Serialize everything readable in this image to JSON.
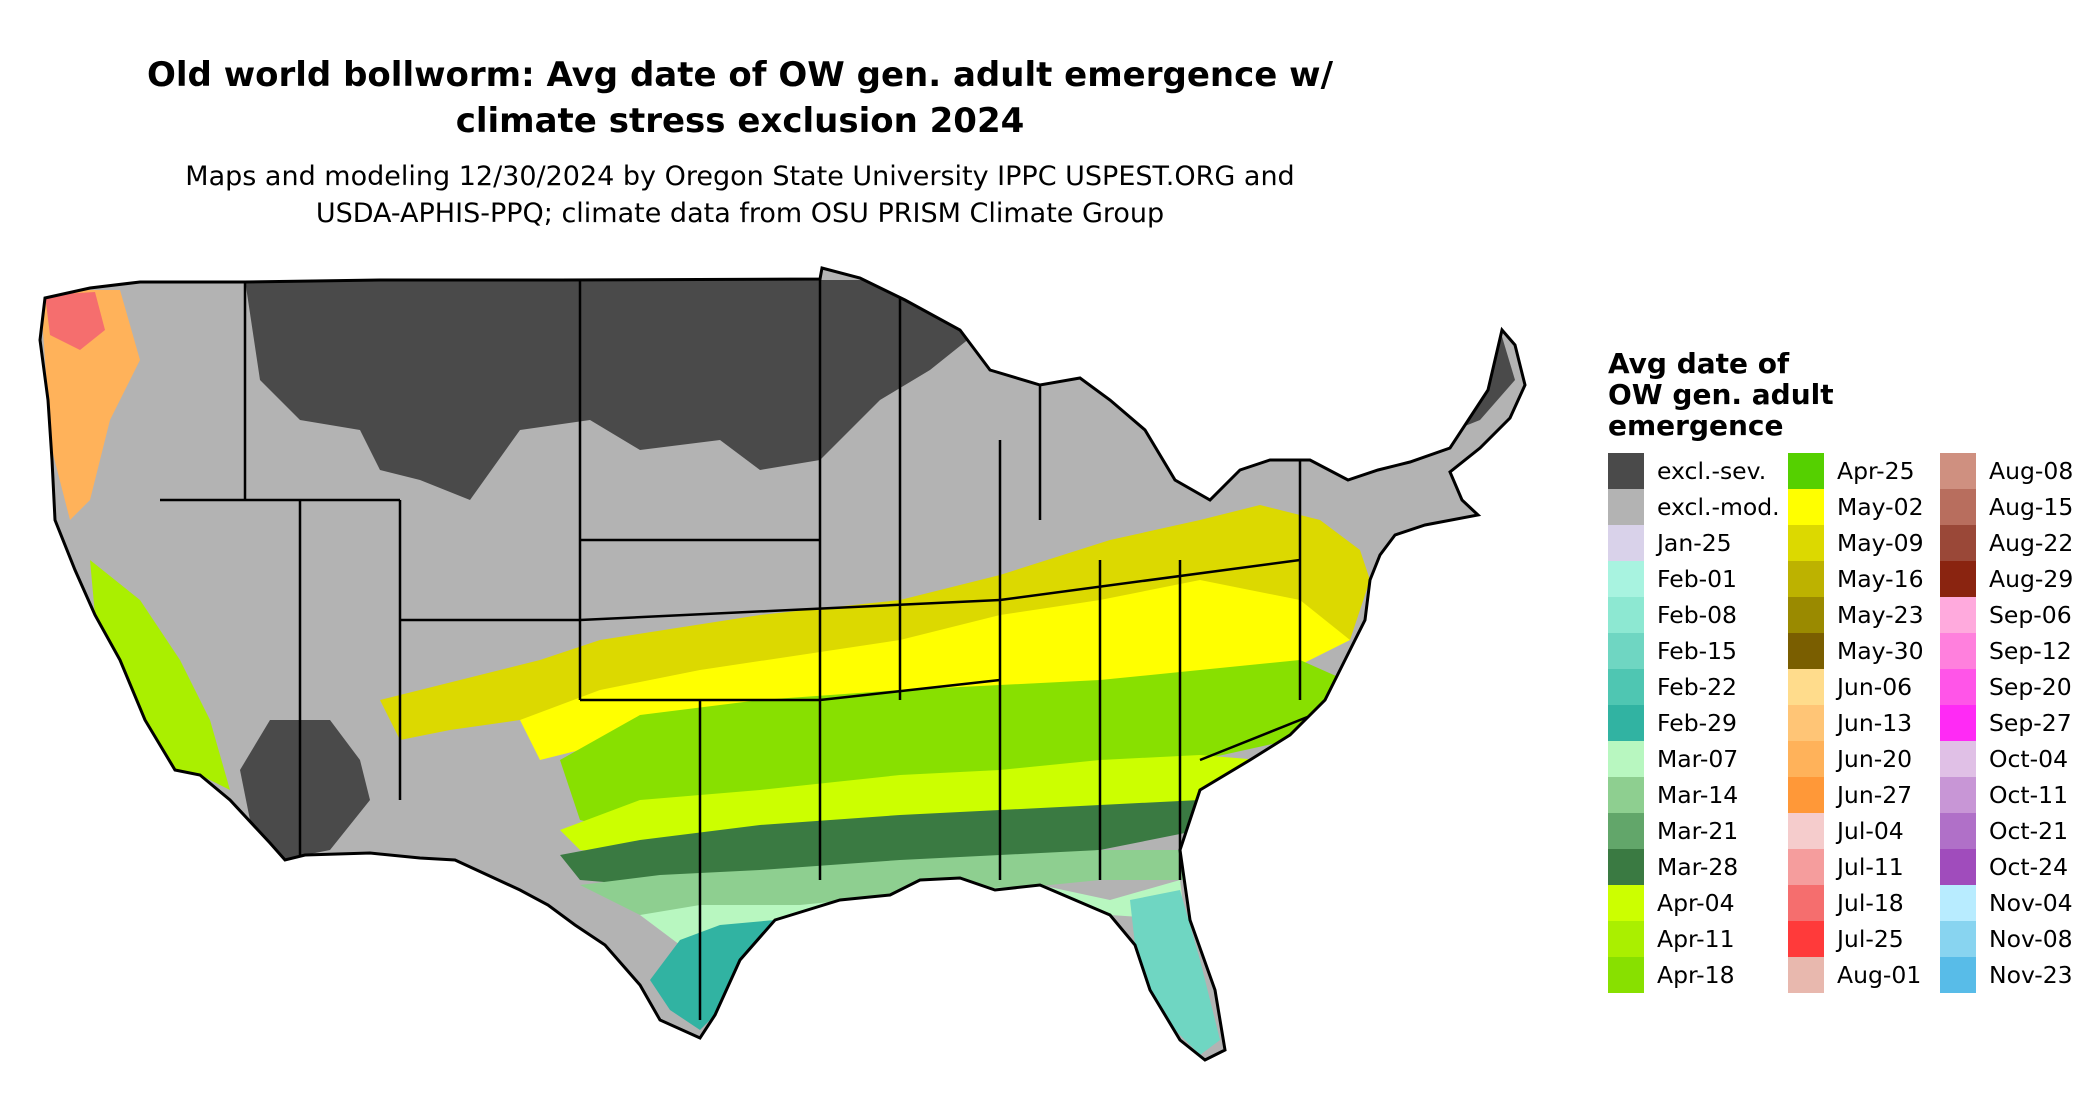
{
  "title": {
    "line1": "Old world bollworm: Avg date of OW gen. adult emergence w/",
    "line2": "climate stress exclusion 2024"
  },
  "subtitle": {
    "line1": "Maps and modeling 12/30/2024 by Oregon State University IPPC USPEST.ORG and",
    "line2": "USDA-APHIS-PPQ; climate data from OSU PRISM Climate Group"
  },
  "legend": {
    "title_lines": [
      "Avg date of",
      "OW gen. adult",
      "emergence"
    ],
    "columns": [
      [
        {
          "label": "excl.-sev.",
          "color": "#4a4a4a"
        },
        {
          "label": "excl.-mod.",
          "color": "#b3b3b3"
        },
        {
          "label": "Jan-25",
          "color": "#d9d2ea"
        },
        {
          "label": "Feb-01",
          "color": "#a8f3e0"
        },
        {
          "label": "Feb-08",
          "color": "#8de8d2"
        },
        {
          "label": "Feb-15",
          "color": "#6fd6c2"
        },
        {
          "label": "Feb-22",
          "color": "#4fc6b2"
        },
        {
          "label": "Feb-29",
          "color": "#31b3a2"
        },
        {
          "label": "Mar-07",
          "color": "#b8f7c0"
        },
        {
          "label": "Mar-14",
          "color": "#8ecf90"
        },
        {
          "label": "Mar-21",
          "color": "#62a66a"
        },
        {
          "label": "Mar-28",
          "color": "#3a7a42"
        },
        {
          "label": "Apr-04",
          "color": "#ccff00"
        },
        {
          "label": "Apr-11",
          "color": "#aaef00"
        },
        {
          "label": "Apr-18",
          "color": "#88e000"
        }
      ],
      [
        {
          "label": "Apr-25",
          "color": "#55d000"
        },
        {
          "label": "May-02",
          "color": "#ffff00"
        },
        {
          "label": "May-09",
          "color": "#dcd900"
        },
        {
          "label": "May-16",
          "color": "#bdb200"
        },
        {
          "label": "May-23",
          "color": "#9a8a00"
        },
        {
          "label": "May-30",
          "color": "#7a5e00"
        },
        {
          "label": "Jun-06",
          "color": "#ffdc8c"
        },
        {
          "label": "Jun-13",
          "color": "#ffc576"
        },
        {
          "label": "Jun-20",
          "color": "#ffb25a"
        },
        {
          "label": "Jun-27",
          "color": "#ff9838"
        },
        {
          "label": "Jul-04",
          "color": "#f5cccc"
        },
        {
          "label": "Jul-11",
          "color": "#f59d9d"
        },
        {
          "label": "Jul-18",
          "color": "#f56e6e"
        },
        {
          "label": "Jul-25",
          "color": "#ff3a3a"
        },
        {
          "label": "Aug-01",
          "color": "#e8b8ae"
        }
      ],
      [
        {
          "label": "Aug-08",
          "color": "#cf9080"
        },
        {
          "label": "Aug-15",
          "color": "#b86e5e"
        },
        {
          "label": "Aug-22",
          "color": "#9a4838"
        },
        {
          "label": "Aug-29",
          "color": "#8a2410"
        },
        {
          "label": "Sep-06",
          "color": "#ffaadd"
        },
        {
          "label": "Sep-12",
          "color": "#ff80dd"
        },
        {
          "label": "Sep-20",
          "color": "#ff55e8"
        },
        {
          "label": "Sep-27",
          "color": "#ff2af5"
        },
        {
          "label": "Oct-04",
          "color": "#e0c0e6"
        },
        {
          "label": "Oct-11",
          "color": "#c896d6"
        },
        {
          "label": "Oct-21",
          "color": "#b070c8"
        },
        {
          "label": "Oct-24",
          "color": "#a04cbc"
        },
        {
          "label": "Nov-04",
          "color": "#b8ecff"
        },
        {
          "label": "Nov-08",
          "color": "#88d4f0"
        },
        {
          "label": "Nov-23",
          "color": "#58bce8"
        }
      ]
    ]
  },
  "map_colors": {
    "excl_sev": "#4a4a4a",
    "excl_mod": "#b3b3b3",
    "border": "#000000"
  }
}
